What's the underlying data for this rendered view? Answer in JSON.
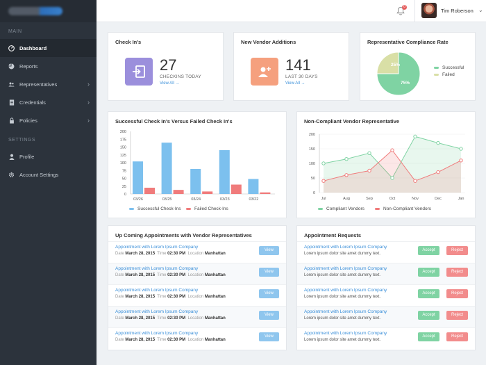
{
  "sidebar": {
    "section_main": "MAIN",
    "section_settings": "SETTINGS",
    "items": [
      {
        "label": "Dashboard",
        "icon": "dashboard-icon"
      },
      {
        "label": "Reports",
        "icon": "pie-chart-icon"
      },
      {
        "label": "Representatives",
        "icon": "users-icon"
      },
      {
        "label": "Credentials",
        "icon": "document-icon"
      },
      {
        "label": "Policies",
        "icon": "lock-icon"
      }
    ],
    "settings_items": [
      {
        "label": "Profile",
        "icon": "user-icon"
      },
      {
        "label": "Account Settings",
        "icon": "gear-icon"
      }
    ]
  },
  "topbar": {
    "notification_count": "0",
    "user_name": "Tim Roberson"
  },
  "checkins": {
    "title": "Check In's",
    "value": "27",
    "subtitle": "CHECKINS TODAY",
    "link": "View All →",
    "color": "#9b8fdc"
  },
  "vendors": {
    "title": "New Vendor Additions",
    "value": "141",
    "subtitle": "LAST 30 DAYS",
    "link": "View All →",
    "color": "#f5a07e"
  },
  "compliance": {
    "title": "Representative Compliance Rate",
    "legend_successful": "Successful",
    "legend_failed": "Failed",
    "label_successful": "75%",
    "label_failed": "25%"
  },
  "bar_chart": {
    "title": "Successful Check In's Versus Failed Check In's",
    "legend_success": "Successful Check-Ins",
    "legend_failed": "Failed Check-Ins"
  },
  "line_chart": {
    "title": "Non-Compliant Vendor Representative",
    "legend_compliant": "Compliant Vendors",
    "legend_noncompliant": "Non-Compliant Vendors"
  },
  "chart_data": [
    {
      "type": "pie",
      "title": "Representative Compliance Rate",
      "labels": [
        "Successful",
        "Failed"
      ],
      "values": [
        75,
        25
      ],
      "colors": [
        "#7fd3a3",
        "#d9dfa6"
      ]
    },
    {
      "type": "bar",
      "title": "Successful Check In's Versus Failed Check In's",
      "categories": [
        "03/26",
        "03/25",
        "03/24",
        "03/23",
        "03/22"
      ],
      "series": [
        {
          "name": "Successful Check-Ins",
          "color": "#7cc0ee",
          "values": [
            104,
            164,
            80,
            140,
            48
          ]
        },
        {
          "name": "Failed Check-Ins",
          "color": "#f07b7b",
          "values": [
            20,
            13,
            8,
            30,
            5
          ]
        }
      ],
      "yticks": [
        0,
        25,
        50,
        75,
        100,
        125,
        150,
        175,
        200
      ],
      "ylim": [
        0,
        200
      ]
    },
    {
      "type": "area",
      "title": "Non-Compliant Vendor Representative",
      "categories": [
        "Jul",
        "Aug",
        "Sep",
        "Oct",
        "Nov",
        "Dec",
        "Jan"
      ],
      "series": [
        {
          "name": "Compliant Vendors",
          "color": "#7fd3a3",
          "values": [
            100,
            115,
            135,
            50,
            192,
            170,
            150
          ]
        },
        {
          "name": "Non-Compliant Vendors",
          "color": "#f07b7b",
          "values": [
            40,
            60,
            75,
            145,
            40,
            70,
            110
          ]
        }
      ],
      "yticks": [
        0,
        50,
        100,
        150,
        200
      ],
      "ylim": [
        0,
        200
      ],
      "marker_index": [
        0,
        2,
        4,
        6
      ]
    }
  ],
  "appointments": {
    "title": "Up Coming Appointments with Vendor Representatives",
    "button_label": "View",
    "rows": [
      {
        "title": "Appointment with Lorem Ipsum Company",
        "date_label": "Date",
        "date": "March 28, 2015",
        "time_label": "Time",
        "time": "02:30 PM",
        "location_label": "Location",
        "location": "Manhattan"
      },
      {
        "title": "Appointment with Lorem Ipsum Company",
        "date_label": "Date",
        "date": "March 28, 2015",
        "time_label": "Time",
        "time": "02:30 PM",
        "location_label": "Location",
        "location": "Manhattan"
      },
      {
        "title": "Appointment with Lorem Ipsum Company",
        "date_label": "Date",
        "date": "March 28, 2015",
        "time_label": "Time",
        "time": "02:30 PM",
        "location_label": "Location",
        "location": "Manhattan"
      },
      {
        "title": "Appointment with Lorem Ipsum Company",
        "date_label": "Date",
        "date": "March 28, 2015",
        "time_label": "Time",
        "time": "02:30 PM",
        "location_label": "Location",
        "location": "Manhattan"
      },
      {
        "title": "Appointment with Lorem Ipsum Company",
        "date_label": "Date",
        "date": "March 28, 2015",
        "time_label": "Time",
        "time": "02:30 PM",
        "location_label": "Location",
        "location": "Manhattan"
      }
    ]
  },
  "requests": {
    "title": "Appointment Requests",
    "accept_label": "Accept",
    "reject_label": "Reject",
    "rows": [
      {
        "title": "Appointment with Lorem Ipsum Company",
        "text": "Lorem ipsum dolor site amet dummy text."
      },
      {
        "title": "Appointment with Lorem Ipsum Company",
        "text": "Lorem ipsum dolor site amet dummy text."
      },
      {
        "title": "Appointment with Lorem Ipsum Company",
        "text": "Lorem ipsum dolor site amet dummy text."
      },
      {
        "title": "Appointment with Lorem Ipsum Company",
        "text": "Lorem ipsum dolor site amet dummy text."
      },
      {
        "title": "Appointment with Lorem Ipsum Company",
        "text": "Lorem ipsum dolor site amet dummy text."
      }
    ]
  }
}
